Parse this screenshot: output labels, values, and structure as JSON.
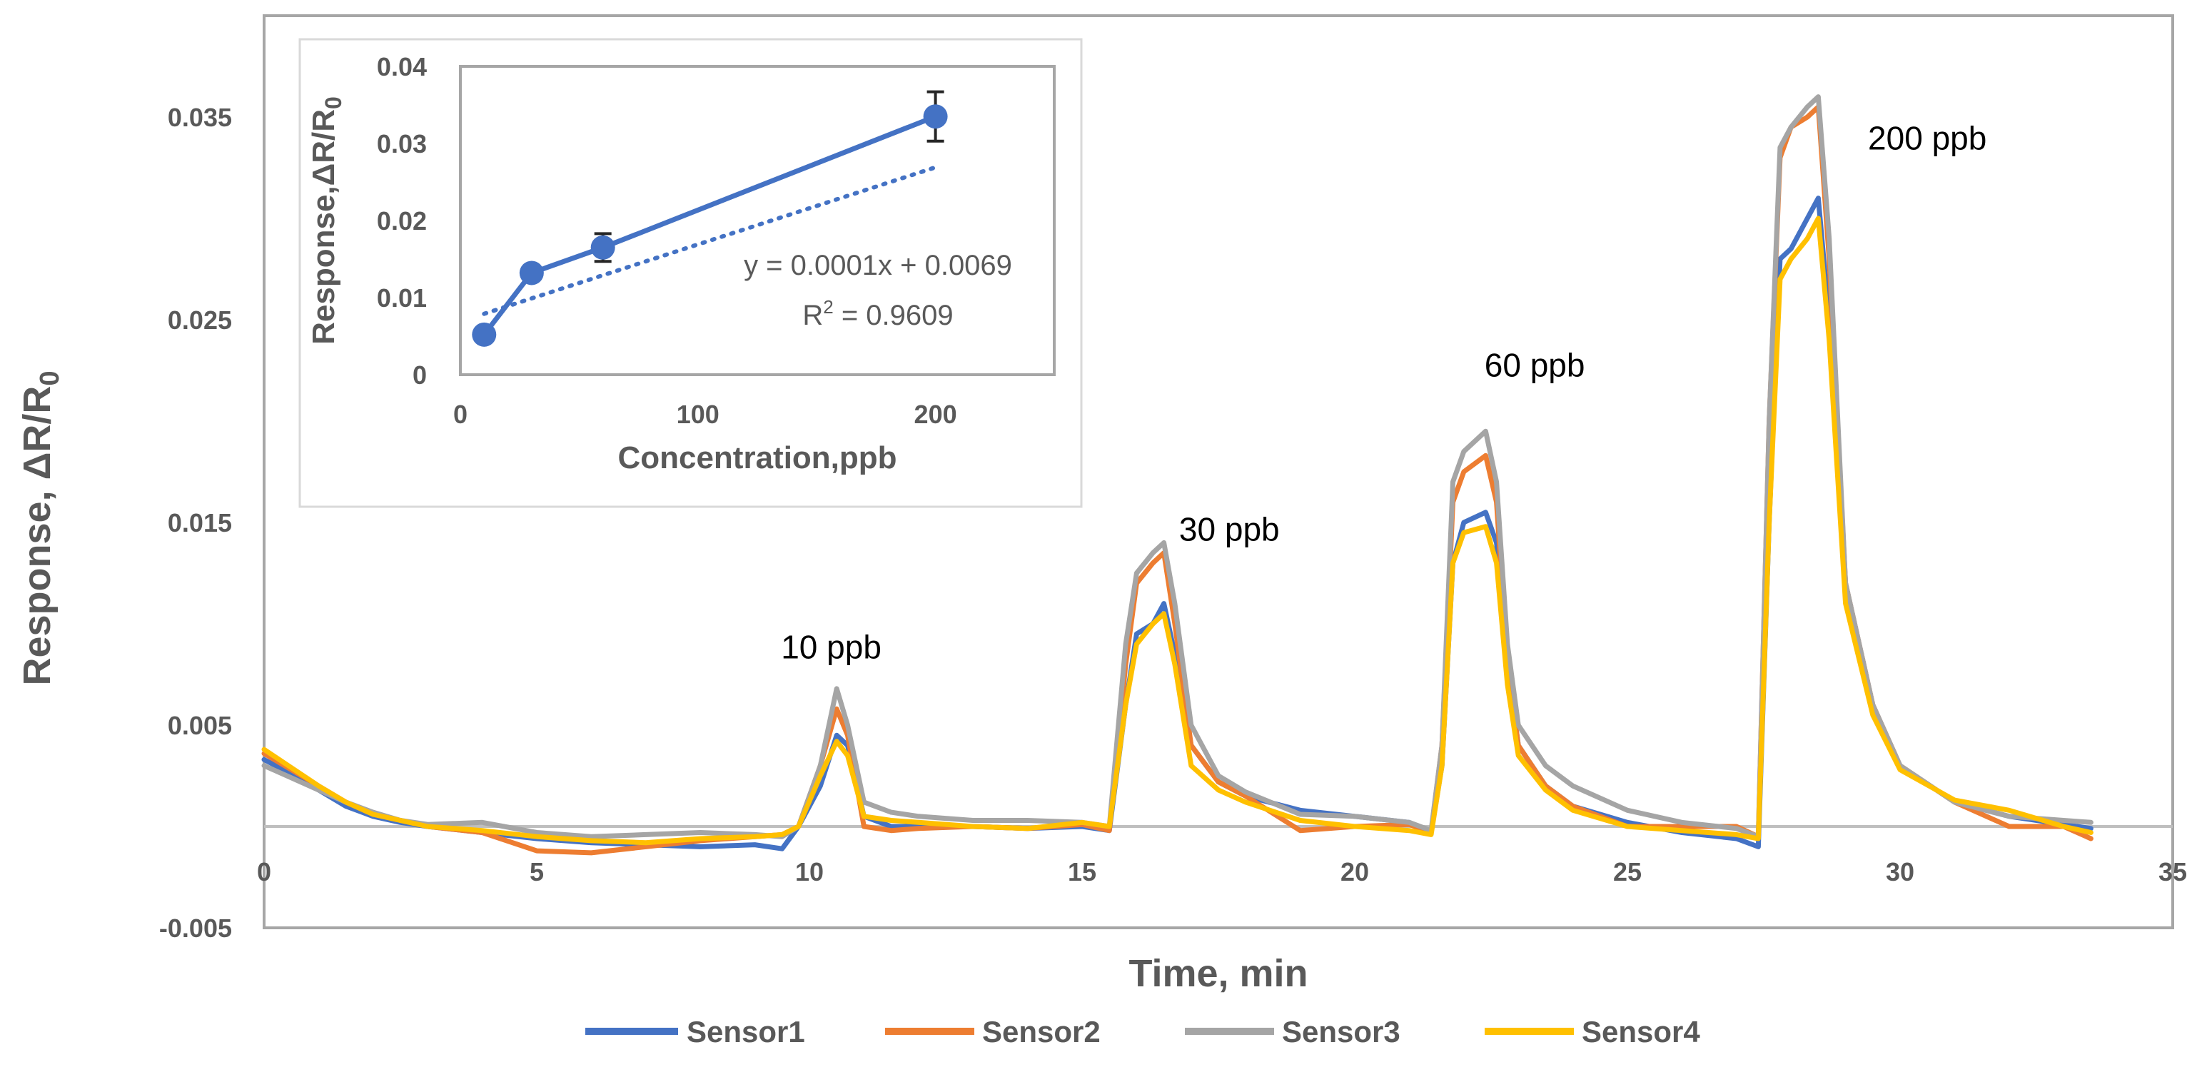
{
  "colors": {
    "sensor1": "#4472C4",
    "sensor2": "#ED7D31",
    "sensor3": "#A5A5A5",
    "sensor4": "#FFC000",
    "axis_text": "#595959",
    "frame": "#A6A6A6",
    "zero_line": "#BFBFBF"
  },
  "chart_data": [
    {
      "type": "line",
      "title": "",
      "xlabel": "Time, min",
      "ylabel_prefix": "Response, ΔR/R",
      "ylabel_subscript": "0",
      "xlim": [
        0,
        35
      ],
      "ylim": [
        -0.005,
        0.04
      ],
      "x_ticks": [
        0,
        5,
        10,
        15,
        20,
        25,
        30,
        35
      ],
      "x_tick_labels": [
        "0",
        "5",
        "10",
        "15",
        "20",
        "25",
        "30",
        "35"
      ],
      "y_ticks": [
        -0.005,
        0.005,
        0.015,
        0.025,
        0.035
      ],
      "y_tick_labels": [
        "-0.005",
        "0.005",
        "0.015",
        "0.025",
        "0.035"
      ],
      "legend_position": "bottom",
      "annotations": [
        {
          "text": "10 ppb",
          "x": 10.4,
          "y": 0.0083
        },
        {
          "text": "30 ppb",
          "x": 17.7,
          "y": 0.0141
        },
        {
          "text": "60 ppb",
          "x": 23.3,
          "y": 0.0222
        },
        {
          "text": "200 ppb",
          "x": 30.5,
          "y": 0.0334
        }
      ],
      "series": [
        {
          "name": "Sensor1",
          "x": [
            0,
            0.5,
            1,
            1.5,
            2,
            2.5,
            3,
            4,
            5,
            6,
            7,
            8,
            9,
            9.5,
            9.8,
            10.2,
            10.5,
            10.7,
            11,
            11.5,
            12,
            13,
            14,
            15,
            15.5,
            15.8,
            16,
            16.3,
            16.5,
            16.7,
            17,
            17.5,
            18,
            19,
            20,
            21,
            21.4,
            21.6,
            21.8,
            22,
            22.4,
            22.6,
            22.8,
            23,
            23.5,
            24,
            25,
            26,
            27,
            27.4,
            27.6,
            27.8,
            28,
            28.3,
            28.5,
            28.7,
            29,
            29.5,
            30,
            31,
            32,
            33,
            33.5
          ],
          "values": [
            0.0033,
            0.0026,
            0.0018,
            0.001,
            0.0005,
            0.0002,
            0.0,
            -0.0003,
            -0.0006,
            -0.0008,
            -0.0009,
            -0.001,
            -0.0009,
            -0.0011,
            0.0,
            0.002,
            0.0045,
            0.004,
            0.0005,
            0.0,
            0.0,
            0.0,
            -0.0001,
            0.0,
            -0.0002,
            0.006,
            0.0095,
            0.01,
            0.011,
            0.0085,
            0.004,
            0.0022,
            0.0015,
            0.0008,
            0.0005,
            0.0002,
            -0.0003,
            0.003,
            0.013,
            0.015,
            0.0155,
            0.014,
            0.008,
            0.004,
            0.002,
            0.001,
            0.0002,
            -0.0003,
            -0.0006,
            -0.001,
            0.015,
            0.028,
            0.0285,
            0.03,
            0.031,
            0.025,
            0.012,
            0.006,
            0.003,
            0.0012,
            0.0005,
            0.0001,
            -0.0001
          ]
        },
        {
          "name": "Sensor2",
          "x": [
            0,
            0.5,
            1,
            1.5,
            2,
            2.5,
            3,
            4,
            5,
            6,
            7,
            8,
            9,
            9.5,
            9.8,
            10.2,
            10.5,
            10.7,
            11,
            11.5,
            12,
            13,
            14,
            15,
            15.5,
            15.8,
            16,
            16.3,
            16.5,
            16.7,
            17,
            17.5,
            18,
            19,
            20,
            21,
            21.4,
            21.6,
            21.8,
            22,
            22.4,
            22.6,
            22.8,
            23,
            23.5,
            24,
            25,
            26,
            27,
            27.4,
            27.6,
            27.8,
            28,
            28.3,
            28.5,
            28.7,
            29,
            29.5,
            30,
            31,
            32,
            33,
            33.5
          ],
          "values": [
            0.0036,
            0.0028,
            0.002,
            0.0012,
            0.0006,
            0.0003,
            0.0,
            -0.0003,
            -0.0012,
            -0.0013,
            -0.001,
            -0.0007,
            -0.0005,
            -0.0004,
            0.0,
            0.003,
            0.0058,
            0.0045,
            0.0,
            -0.0002,
            -0.0001,
            0.0,
            -0.0001,
            0.0001,
            -0.0002,
            0.008,
            0.012,
            0.013,
            0.0135,
            0.01,
            0.004,
            0.0022,
            0.0015,
            -0.0002,
            0.0,
            0.0001,
            -0.0003,
            0.004,
            0.016,
            0.0175,
            0.0183,
            0.016,
            0.008,
            0.004,
            0.002,
            0.001,
            0.0,
            0.0,
            0.0,
            -0.0005,
            0.02,
            0.033,
            0.0345,
            0.035,
            0.0355,
            0.028,
            0.012,
            0.006,
            0.003,
            0.0012,
            0.0,
            0.0,
            -0.0006
          ]
        },
        {
          "name": "Sensor3",
          "x": [
            0,
            0.5,
            1,
            1.5,
            2,
            2.5,
            3,
            4,
            5,
            6,
            7,
            8,
            9,
            9.5,
            9.8,
            10.2,
            10.5,
            10.7,
            11,
            11.5,
            12,
            13,
            14,
            15,
            15.5,
            15.8,
            16,
            16.3,
            16.5,
            16.7,
            17,
            17.5,
            18,
            19,
            20,
            21,
            21.4,
            21.6,
            21.8,
            22,
            22.4,
            22.6,
            22.8,
            23,
            23.5,
            24,
            25,
            26,
            27,
            27.4,
            27.6,
            27.8,
            28,
            28.3,
            28.5,
            28.7,
            29,
            29.5,
            30,
            31,
            32,
            33,
            33.5
          ],
          "values": [
            0.003,
            0.0024,
            0.0018,
            0.0012,
            0.0007,
            0.0003,
            0.0001,
            0.0002,
            -0.0003,
            -0.0005,
            -0.0004,
            -0.0003,
            -0.0004,
            -0.0005,
            0.0,
            0.003,
            0.0068,
            0.005,
            0.0012,
            0.0007,
            0.0005,
            0.0003,
            0.0003,
            0.0002,
            0.0,
            0.009,
            0.0125,
            0.0135,
            0.014,
            0.011,
            0.005,
            0.0025,
            0.0017,
            0.0006,
            0.0005,
            0.0002,
            -0.0002,
            0.004,
            0.017,
            0.0185,
            0.0195,
            0.017,
            0.009,
            0.005,
            0.003,
            0.002,
            0.0008,
            0.0002,
            -0.0001,
            -0.0005,
            0.02,
            0.0335,
            0.0345,
            0.0355,
            0.036,
            0.029,
            0.012,
            0.006,
            0.003,
            0.0012,
            0.0005,
            0.0003,
            0.0002
          ]
        },
        {
          "name": "Sensor4",
          "x": [
            0,
            0.5,
            1,
            1.5,
            2,
            2.5,
            3,
            4,
            5,
            6,
            7,
            8,
            9,
            9.5,
            9.8,
            10.2,
            10.5,
            10.7,
            11,
            11.5,
            12,
            13,
            14,
            15,
            15.5,
            15.8,
            16,
            16.3,
            16.5,
            16.7,
            17,
            17.5,
            18,
            19,
            20,
            21,
            21.4,
            21.6,
            21.8,
            22,
            22.4,
            22.6,
            22.8,
            23,
            23.5,
            24,
            25,
            26,
            27,
            27.4,
            27.6,
            27.8,
            28,
            28.3,
            28.5,
            28.7,
            29,
            29.5,
            30,
            31,
            32,
            33,
            33.5
          ],
          "values": [
            0.0038,
            0.0029,
            0.002,
            0.0012,
            0.0006,
            0.0003,
            0.0,
            -0.0002,
            -0.0005,
            -0.0007,
            -0.0008,
            -0.0006,
            -0.0005,
            -0.0004,
            0.0,
            0.0025,
            0.0042,
            0.0035,
            0.0005,
            0.0003,
            0.0002,
            0.0,
            -0.0001,
            0.0002,
            0.0,
            0.006,
            0.009,
            0.01,
            0.0105,
            0.008,
            0.003,
            0.0018,
            0.0012,
            0.0003,
            0.0,
            -0.0002,
            -0.0004,
            0.003,
            0.013,
            0.0145,
            0.0148,
            0.013,
            0.007,
            0.0035,
            0.0018,
            0.0008,
            0.0,
            -0.0002,
            -0.0004,
            -0.0006,
            0.015,
            0.027,
            0.028,
            0.029,
            0.03,
            0.024,
            0.011,
            0.0055,
            0.0028,
            0.0013,
            0.0008,
            0.0,
            -0.0003
          ]
        }
      ]
    },
    {
      "type": "scatter",
      "title": "",
      "xlabel": "Concentration,ppb",
      "ylabel_prefix": "Response,ΔR/R",
      "ylabel_subscript": "0",
      "xlim": [
        0,
        250
      ],
      "ylim": [
        0,
        0.04
      ],
      "x_ticks": [
        0,
        100,
        200
      ],
      "x_tick_labels": [
        "0",
        "100",
        "200"
      ],
      "y_ticks": [
        0,
        0.01,
        0.02,
        0.03,
        0.04
      ],
      "y_tick_labels": [
        "0",
        "0.01",
        "0.02",
        "0.03",
        "0.04"
      ],
      "equation": "y = 0.0001x + 0.0069",
      "r_squared_prefix": "R",
      "r_squared_sup": "2",
      "r_squared_value": " = 0.9609",
      "trendline": {
        "slope": 0.0001,
        "intercept": 0.0069,
        "x_range": [
          10,
          200
        ]
      },
      "series": [
        {
          "name": "Response",
          "x": [
            10,
            30,
            60,
            200
          ],
          "values": [
            0.0052,
            0.0132,
            0.0165,
            0.0335
          ],
          "errors": [
            0.0008,
            0.0007,
            0.0018,
            0.0032
          ]
        }
      ]
    }
  ]
}
